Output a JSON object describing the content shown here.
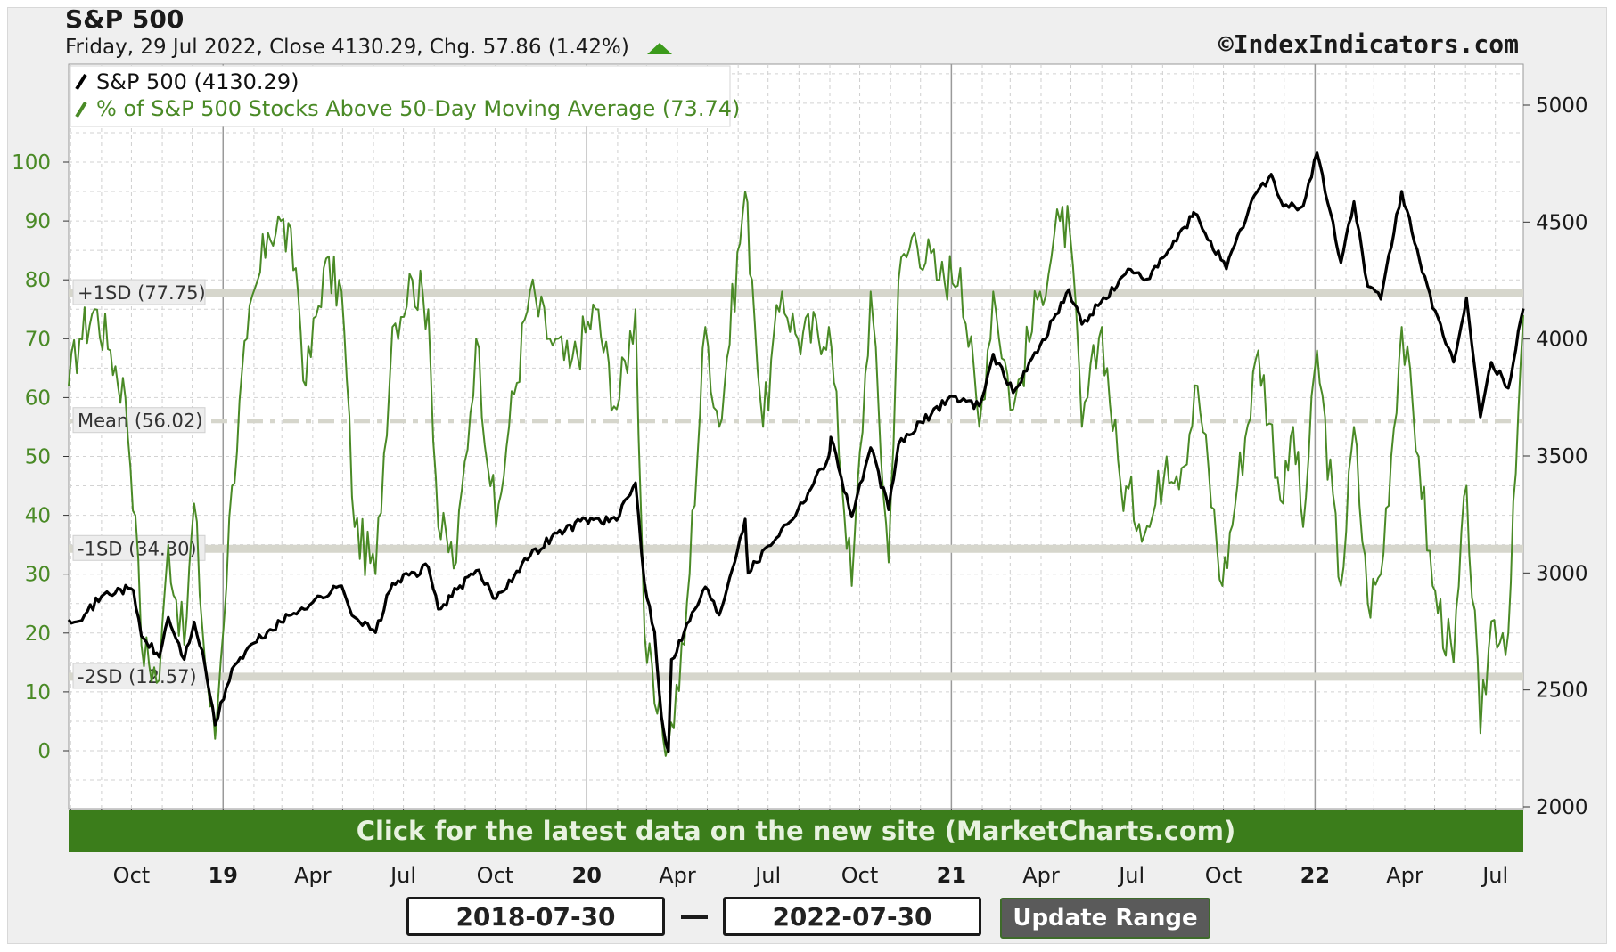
{
  "header": {
    "title": "S&P 500",
    "subtitle": "Friday, 29 Jul 2022, Close 4130.29, Chg. 57.86 (1.42%)",
    "watermark": "©IndexIndicators.com"
  },
  "banner": {
    "text": "Click for the latest data on the new site (MarketCharts.com)"
  },
  "controls": {
    "start_date": "2018-07-30",
    "end_date": "2022-07-30",
    "update_label": "Update Range"
  },
  "colors": {
    "spx_line": "#000000",
    "breadth_line": "#4a8a26",
    "left_axis_text": "#4a8a26",
    "banner_bg": "#3b7d1b",
    "band_color": "#d6d6cc"
  },
  "chart_data": {
    "type": "line",
    "x_start": "2018-07-30",
    "x_end": "2022-07-29",
    "x_tick_labels": [
      {
        "date": "2018-10-01",
        "label": "Oct",
        "bold": false
      },
      {
        "date": "2019-01-01",
        "label": "19",
        "bold": true
      },
      {
        "date": "2019-04-01",
        "label": "Apr",
        "bold": false
      },
      {
        "date": "2019-07-01",
        "label": "Jul",
        "bold": false
      },
      {
        "date": "2019-10-01",
        "label": "Oct",
        "bold": false
      },
      {
        "date": "2020-01-01",
        "label": "20",
        "bold": true
      },
      {
        "date": "2020-04-01",
        "label": "Apr",
        "bold": false
      },
      {
        "date": "2020-07-01",
        "label": "Jul",
        "bold": false
      },
      {
        "date": "2020-10-01",
        "label": "Oct",
        "bold": false
      },
      {
        "date": "2021-01-01",
        "label": "21",
        "bold": true
      },
      {
        "date": "2021-04-01",
        "label": "Apr",
        "bold": false
      },
      {
        "date": "2021-07-01",
        "label": "Jul",
        "bold": false
      },
      {
        "date": "2021-10-01",
        "label": "Oct",
        "bold": false
      },
      {
        "date": "2022-01-01",
        "label": "22",
        "bold": true
      },
      {
        "date": "2022-04-01",
        "label": "Apr",
        "bold": false
      },
      {
        "date": "2022-07-01",
        "label": "Jul",
        "bold": false
      }
    ],
    "left_axis": {
      "ticks": [
        0,
        10,
        20,
        30,
        40,
        50,
        60,
        70,
        80,
        90,
        100
      ]
    },
    "right_axis": {
      "ticks": [
        2000,
        2500,
        3000,
        3500,
        4000,
        4500,
        5000
      ]
    },
    "legend": {
      "position": "top-left",
      "entries": [
        {
          "label": "S&P 500 (4130.29)",
          "color": "#000000"
        },
        {
          "label": "% of S&P 500 Stocks Above 50-Day Moving Average (73.74)",
          "color": "#4a8a26"
        }
      ]
    },
    "reference_lines": [
      {
        "label": "+1SD (77.75)",
        "value": 77.75
      },
      {
        "label": "Mean (56.02)",
        "value": 56.02
      },
      {
        "label": "-1SD (34.30)",
        "value": 34.3
      },
      {
        "label": "-2SD (12.57)",
        "value": 12.57
      }
    ],
    "series": [
      {
        "name": "S&P 500",
        "axis": "right",
        "points": [
          [
            "2018-07-30",
            2800
          ],
          [
            "2018-08-15",
            2820
          ],
          [
            "2018-09-01",
            2900
          ],
          [
            "2018-09-20",
            2930
          ],
          [
            "2018-10-03",
            2925
          ],
          [
            "2018-10-11",
            2730
          ],
          [
            "2018-10-29",
            2640
          ],
          [
            "2018-11-07",
            2810
          ],
          [
            "2018-11-23",
            2630
          ],
          [
            "2018-12-03",
            2790
          ],
          [
            "2018-12-14",
            2600
          ],
          [
            "2018-12-24",
            2350
          ],
          [
            "2019-01-10",
            2590
          ],
          [
            "2019-02-01",
            2700
          ],
          [
            "2019-02-28",
            2790
          ],
          [
            "2019-03-21",
            2850
          ],
          [
            "2019-04-30",
            2945
          ],
          [
            "2019-05-13",
            2810
          ],
          [
            "2019-06-03",
            2745
          ],
          [
            "2019-06-20",
            2955
          ],
          [
            "2019-07-26",
            3025
          ],
          [
            "2019-08-05",
            2845
          ],
          [
            "2019-09-12",
            3010
          ],
          [
            "2019-10-02",
            2890
          ],
          [
            "2019-10-28",
            3040
          ],
          [
            "2019-11-27",
            3155
          ],
          [
            "2019-12-31",
            3230
          ],
          [
            "2020-01-31",
            3225
          ],
          [
            "2020-02-19",
            3385
          ],
          [
            "2020-02-28",
            2955
          ],
          [
            "2020-03-09",
            2750
          ],
          [
            "2020-03-16",
            2385
          ],
          [
            "2020-03-23",
            2237
          ],
          [
            "2020-03-26",
            2630
          ],
          [
            "2020-04-08",
            2750
          ],
          [
            "2020-04-29",
            2940
          ],
          [
            "2020-05-13",
            2820
          ],
          [
            "2020-06-08",
            3230
          ],
          [
            "2020-06-11",
            3000
          ],
          [
            "2020-07-01",
            3115
          ],
          [
            "2020-07-31",
            3270
          ],
          [
            "2020-08-31",
            3500
          ],
          [
            "2020-09-02",
            3580
          ],
          [
            "2020-09-23",
            3240
          ],
          [
            "2020-10-12",
            3535
          ],
          [
            "2020-10-30",
            3270
          ],
          [
            "2020-11-09",
            3550
          ],
          [
            "2020-12-31",
            3756
          ],
          [
            "2021-01-29",
            3714
          ],
          [
            "2021-02-12",
            3935
          ],
          [
            "2021-03-04",
            3770
          ],
          [
            "2021-03-31",
            3973
          ],
          [
            "2021-04-29",
            4211
          ],
          [
            "2021-05-12",
            4063
          ],
          [
            "2021-06-30",
            4297
          ],
          [
            "2021-07-19",
            4258
          ],
          [
            "2021-08-31",
            4523
          ],
          [
            "2021-09-02",
            4537
          ],
          [
            "2021-10-04",
            4300
          ],
          [
            "2021-11-01",
            4613
          ],
          [
            "2021-11-18",
            4704
          ],
          [
            "2021-11-30",
            4567
          ],
          [
            "2021-12-20",
            4568
          ],
          [
            "2022-01-03",
            4796
          ],
          [
            "2022-01-27",
            4326
          ],
          [
            "2022-02-09",
            4587
          ],
          [
            "2022-02-23",
            4225
          ],
          [
            "2022-03-08",
            4170
          ],
          [
            "2022-03-29",
            4631
          ],
          [
            "2022-04-29",
            4132
          ],
          [
            "2022-05-20",
            3901
          ],
          [
            "2022-06-02",
            4176
          ],
          [
            "2022-06-16",
            3667
          ],
          [
            "2022-06-27",
            3900
          ],
          [
            "2022-07-14",
            3790
          ],
          [
            "2022-07-29",
            4130
          ]
        ]
      },
      {
        "name": "% of S&P 500 Stocks Above 50-Day Moving Average",
        "axis": "left",
        "points": [
          [
            "2018-07-30",
            62
          ],
          [
            "2018-08-10",
            70
          ],
          [
            "2018-08-25",
            75
          ],
          [
            "2018-09-10",
            68
          ],
          [
            "2018-09-25",
            60
          ],
          [
            "2018-10-05",
            40
          ],
          [
            "2018-10-11",
            18
          ],
          [
            "2018-10-29",
            12
          ],
          [
            "2018-11-07",
            35
          ],
          [
            "2018-11-23",
            18
          ],
          [
            "2018-12-03",
            42
          ],
          [
            "2018-12-14",
            15
          ],
          [
            "2018-12-24",
            2
          ],
          [
            "2019-01-10",
            45
          ],
          [
            "2019-01-25",
            70
          ],
          [
            "2019-02-15",
            88
          ],
          [
            "2019-02-28",
            90
          ],
          [
            "2019-03-15",
            82
          ],
          [
            "2019-03-25",
            62
          ],
          [
            "2019-04-12",
            82
          ],
          [
            "2019-04-30",
            78
          ],
          [
            "2019-05-13",
            38
          ],
          [
            "2019-06-03",
            30
          ],
          [
            "2019-06-20",
            72
          ],
          [
            "2019-07-10",
            80
          ],
          [
            "2019-07-26",
            75
          ],
          [
            "2019-08-05",
            38
          ],
          [
            "2019-08-23",
            32
          ],
          [
            "2019-09-12",
            70
          ],
          [
            "2019-10-02",
            38
          ],
          [
            "2019-10-15",
            55
          ],
          [
            "2019-11-05",
            78
          ],
          [
            "2019-11-25",
            70
          ],
          [
            "2019-12-15",
            65
          ],
          [
            "2020-01-10",
            75
          ],
          [
            "2020-01-31",
            58
          ],
          [
            "2020-02-19",
            75
          ],
          [
            "2020-02-28",
            20
          ],
          [
            "2020-03-09",
            8
          ],
          [
            "2020-03-23",
            1
          ],
          [
            "2020-04-08",
            18
          ],
          [
            "2020-04-29",
            72
          ],
          [
            "2020-05-13",
            55
          ],
          [
            "2020-06-08",
            95
          ],
          [
            "2020-06-15",
            80
          ],
          [
            "2020-06-26",
            55
          ],
          [
            "2020-07-15",
            78
          ],
          [
            "2020-07-31",
            70
          ],
          [
            "2020-08-31",
            72
          ],
          [
            "2020-09-23",
            28
          ],
          [
            "2020-10-12",
            78
          ],
          [
            "2020-10-30",
            32
          ],
          [
            "2020-11-09",
            80
          ],
          [
            "2020-11-25",
            88
          ],
          [
            "2020-12-20",
            80
          ],
          [
            "2021-01-10",
            82
          ],
          [
            "2021-01-29",
            55
          ],
          [
            "2021-02-12",
            78
          ],
          [
            "2021-03-04",
            58
          ],
          [
            "2021-03-31",
            78
          ],
          [
            "2021-04-20",
            90
          ],
          [
            "2021-04-30",
            88
          ],
          [
            "2021-05-12",
            55
          ],
          [
            "2021-06-01",
            72
          ],
          [
            "2021-06-20",
            45
          ],
          [
            "2021-07-19",
            38
          ],
          [
            "2021-08-05",
            50
          ],
          [
            "2021-08-20",
            48
          ],
          [
            "2021-09-05",
            62
          ],
          [
            "2021-09-30",
            28
          ],
          [
            "2021-10-15",
            45
          ],
          [
            "2021-11-05",
            68
          ],
          [
            "2021-11-30",
            42
          ],
          [
            "2021-12-10",
            55
          ],
          [
            "2021-12-20",
            38
          ],
          [
            "2022-01-03",
            68
          ],
          [
            "2022-01-27",
            28
          ],
          [
            "2022-02-09",
            55
          ],
          [
            "2022-02-23",
            25
          ],
          [
            "2022-03-08",
            30
          ],
          [
            "2022-03-29",
            72
          ],
          [
            "2022-04-15",
            50
          ],
          [
            "2022-04-29",
            28
          ],
          [
            "2022-05-20",
            15
          ],
          [
            "2022-06-02",
            45
          ],
          [
            "2022-06-16",
            3
          ],
          [
            "2022-06-27",
            22
          ],
          [
            "2022-07-14",
            20
          ],
          [
            "2022-07-29",
            74
          ]
        ]
      }
    ]
  }
}
